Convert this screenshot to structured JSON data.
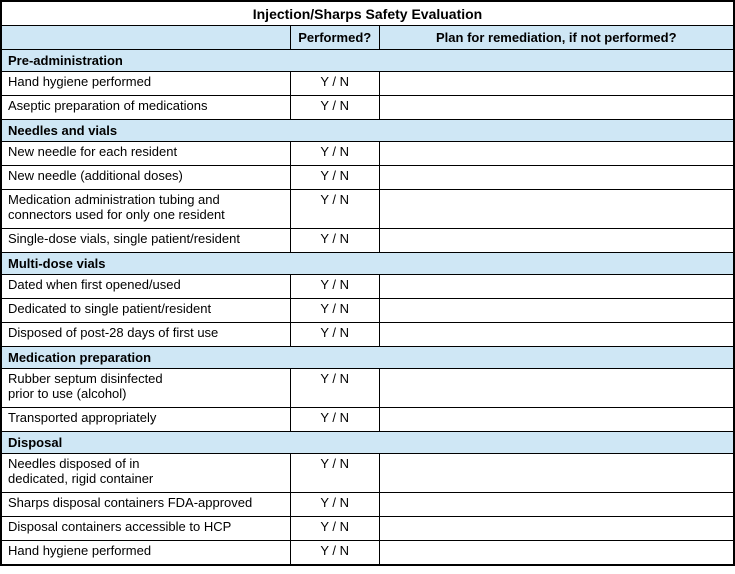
{
  "title": "Injection/Sharps Safety Evaluation",
  "columns": {
    "item": "",
    "performed": "Performed?",
    "remediation": "Plan for remediation, if not performed?"
  },
  "colors": {
    "section_bg": "#cfe7f5",
    "border": "#000000"
  },
  "sections": [
    {
      "label": "Pre-administration",
      "rows": [
        {
          "label": "Hand hygiene performed",
          "performed": "Y / N",
          "remediation": ""
        },
        {
          "label": "Aseptic preparation of medications",
          "performed": "Y / N",
          "remediation": ""
        }
      ]
    },
    {
      "label": "Needles and vials",
      "rows": [
        {
          "label": "New needle for each resident",
          "performed": "Y / N",
          "remediation": ""
        },
        {
          "label": "New needle (additional doses)",
          "performed": "Y / N",
          "remediation": ""
        },
        {
          "label": "Medication administration tubing and\nconnectors used for only one resident",
          "performed": "Y / N",
          "remediation": ""
        },
        {
          "label": "Single-dose vials, single patient/resident",
          "performed": "Y / N",
          "remediation": ""
        }
      ]
    },
    {
      "label": "Multi-dose vials",
      "rows": [
        {
          "label": "Dated when first opened/used",
          "performed": "Y / N",
          "remediation": ""
        },
        {
          "label": "Dedicated to single patient/resident",
          "performed": "Y / N",
          "remediation": ""
        },
        {
          "label": "Disposed of post-28 days of first use",
          "performed": "Y / N",
          "remediation": ""
        }
      ]
    },
    {
      "label": "Medication preparation",
      "rows": [
        {
          "label": "Rubber septum disinfected\nprior to use (alcohol)",
          "performed": "Y / N",
          "remediation": ""
        },
        {
          "label": "Transported appropriately",
          "performed": "Y / N",
          "remediation": ""
        }
      ]
    },
    {
      "label": "Disposal",
      "rows": [
        {
          "label": "Needles disposed of in\ndedicated, rigid container",
          "performed": "Y / N",
          "remediation": ""
        },
        {
          "label": "Sharps disposal containers FDA-approved",
          "performed": "Y / N",
          "remediation": ""
        },
        {
          "label": "Disposal containers accessible to HCP",
          "performed": "Y / N",
          "remediation": ""
        },
        {
          "label": "Hand hygiene performed",
          "performed": "Y / N",
          "remediation": ""
        }
      ]
    }
  ]
}
